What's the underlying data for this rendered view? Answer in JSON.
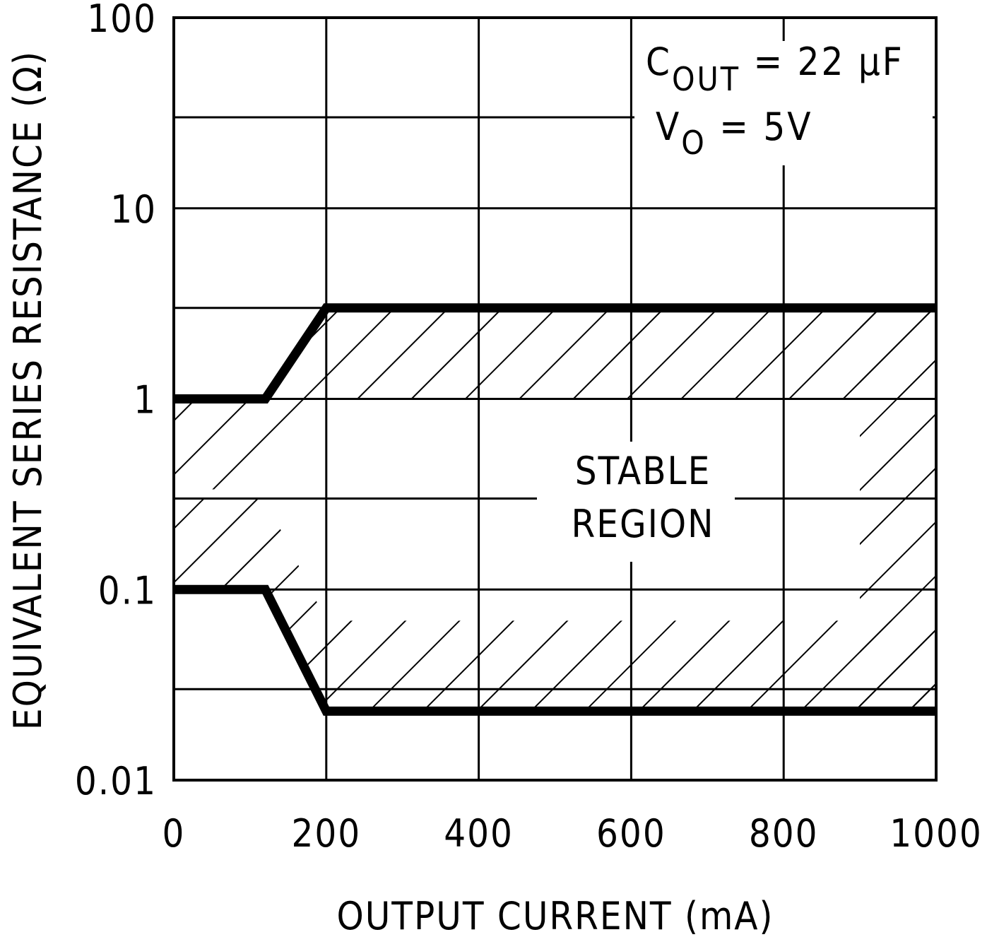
{
  "chart_data": {
    "type": "area",
    "xlabel": "OUTPUT CURRENT (mA)",
    "ylabel": "EQUIVALENT SERIES RESISTANCE (Ω)",
    "xlim": [
      0,
      1000
    ],
    "ylim": [
      0.01,
      100
    ],
    "yscale": "log",
    "grid": true,
    "x_ticks": [
      0,
      200,
      400,
      600,
      800,
      1000
    ],
    "x_tick_labels": [
      "0",
      "200",
      "400",
      "600",
      "800",
      "1000"
    ],
    "y_ticks": [
      0.01,
      0.1,
      1,
      10,
      100
    ],
    "y_tick_labels": [
      "0.01",
      "0.1",
      "1",
      "10",
      "100"
    ],
    "y_minor_ticks": [
      0.03,
      0.3,
      3,
      30
    ],
    "series": [
      {
        "x": [
          0,
          120,
          200,
          1000
        ],
        "y": [
          1,
          1,
          3,
          3
        ]
      },
      {
        "x": [
          0,
          120,
          200,
          1000
        ],
        "y": [
          0.1,
          0.1,
          0.023,
          0.023
        ]
      }
    ],
    "annotations": {
      "cout_main": "C",
      "cout_sub": "OUT",
      "cout_value": " = 22 μF",
      "vo_main": "V",
      "vo_sub": "O",
      "vo_value": " = 5V",
      "region_line1": "STABLE",
      "region_line2": "REGION"
    }
  }
}
